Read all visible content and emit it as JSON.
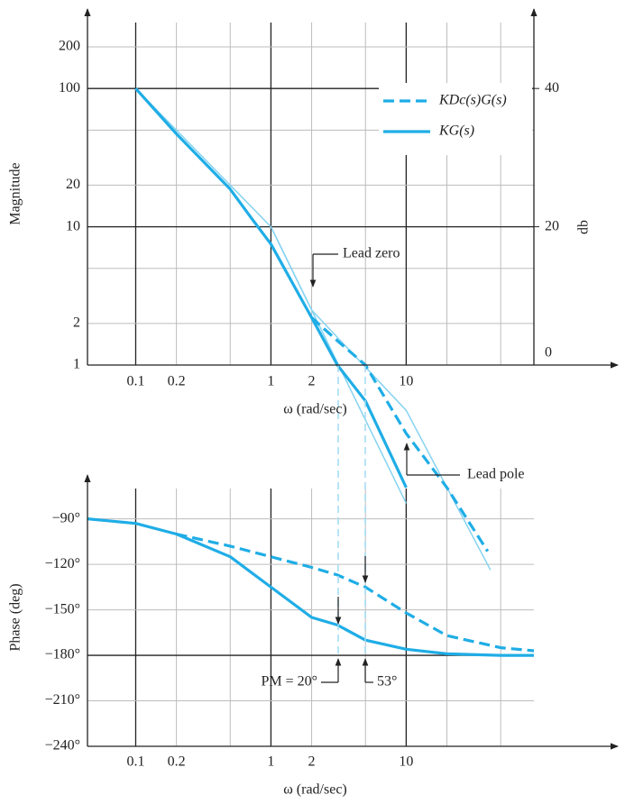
{
  "chart_data": [
    {
      "type": "line",
      "xscale": "log",
      "yscale": "log",
      "ylabel": "Magnitude",
      "xlabel": "ω (rad/sec)",
      "y2label": "db",
      "xlim": [
        0.044,
        88
      ],
      "ylim": [
        1,
        300
      ],
      "xticks": [
        0.1,
        0.2,
        1,
        2,
        10
      ],
      "x_minor_grid": [
        0.5,
        5,
        20,
        50
      ],
      "yticks": [
        1,
        2,
        10,
        20,
        100,
        200
      ],
      "y_minor_grid": [
        5,
        50
      ],
      "y2lim": [
        0,
        49.54
      ],
      "y2ticks": [
        0,
        20,
        40
      ],
      "grid": true,
      "legend": "upper right",
      "x": [
        0.1,
        0.2,
        0.5,
        0.72,
        1,
        2,
        3.1,
        5,
        10,
        20,
        40
      ],
      "series": [
        {
          "name": "KDc(s)G(s)",
          "color": "#1fade6",
          "dashed": true,
          "values": [
            null,
            null,
            null,
            null,
            null,
            2.2,
            1.5,
            1.0,
            0.32,
            0.13,
            0.045
          ]
        },
        {
          "name": "KG(s)",
          "color": "#1fade6",
          "dashed": false,
          "values": [
            100,
            47,
            18.7,
            11.5,
            7.5,
            2.2,
            1.0,
            0.55,
            0.13,
            null,
            null
          ]
        }
      ],
      "asymptotes": [
        {
          "color": "#86d3f1",
          "x": [
            0.1,
            1,
            10
          ],
          "values": [
            100,
            10,
            0.1
          ]
        },
        {
          "color": "#86d3f1",
          "x": [
            1,
            2,
            10,
            42
          ],
          "values": [
            10,
            2.5,
            0.47,
            0.033
          ]
        }
      ],
      "annotations": [
        "Lead zero",
        "Lead pole"
      ]
    },
    {
      "type": "line",
      "xscale": "log",
      "yscale": "linear",
      "ylabel": "Phase (deg)",
      "xlabel": "ω (rad/sec)",
      "xlim": [
        0.044,
        88
      ],
      "ylim": [
        -240,
        -70
      ],
      "xticks": [
        0.1,
        0.2,
        1,
        2,
        10
      ],
      "x_minor_grid": [
        0.5,
        5,
        20,
        50
      ],
      "yticks": [
        {
          "value": -90,
          "label": "−90°"
        },
        {
          "value": -120,
          "label": "−120°"
        },
        {
          "value": -150,
          "label": "−150°"
        },
        {
          "value": -180,
          "label": "−180°"
        },
        {
          "value": -210,
          "label": "−210°"
        },
        {
          "value": -240,
          "label": "−240°"
        }
      ],
      "y_reference": -180,
      "grid": true,
      "x": [
        0.044,
        0.1,
        0.2,
        0.5,
        1,
        2,
        3.1,
        5,
        10,
        20,
        50,
        88
      ],
      "series": [
        {
          "name": "KDc(s)G(s)",
          "color": "#1fade6",
          "dashed": true,
          "values": [
            null,
            null,
            -100,
            -108,
            -115,
            -122,
            -127,
            -135,
            -152,
            -167,
            -175,
            -177
          ]
        },
        {
          "name": "KG(s)",
          "color": "#1fade6",
          "dashed": false,
          "values": [
            -90,
            -93,
            -100,
            -115,
            -135,
            -155,
            -160,
            -170,
            -176,
            -179,
            -180,
            -180
          ]
        }
      ],
      "annotations": [
        "PM = 20°",
        "53°"
      ]
    }
  ]
}
